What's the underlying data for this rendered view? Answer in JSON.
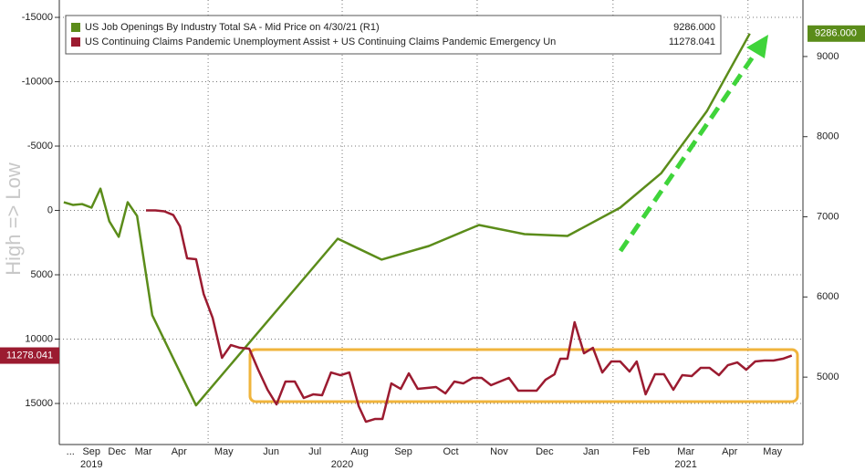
{
  "chart_data": {
    "type": "line",
    "ylabel": "High => Low",
    "xlim": [
      0.12,
      16.76
    ],
    "xticks": [
      {
        "value": 0.37,
        "label": "..."
      },
      {
        "value": 0.84,
        "label": "Sep"
      },
      {
        "value": 1.41,
        "label": "Dec"
      },
      {
        "value": 2.0,
        "label": "Mar"
      },
      {
        "value": 2.8,
        "label": "Apr"
      },
      {
        "value": 3.8,
        "label": "May"
      },
      {
        "value": 4.86,
        "label": "Jun"
      },
      {
        "value": 5.84,
        "label": "Jul"
      },
      {
        "value": 6.84,
        "label": "Aug"
      },
      {
        "value": 7.82,
        "label": "Sep"
      },
      {
        "value": 8.88,
        "label": "Oct"
      },
      {
        "value": 9.96,
        "label": "Nov"
      },
      {
        "value": 10.98,
        "label": "Dec"
      },
      {
        "value": 12.02,
        "label": "Jan"
      },
      {
        "value": 13.14,
        "label": "Feb"
      },
      {
        "value": 14.14,
        "label": "Mar"
      },
      {
        "value": 15.12,
        "label": "Apr"
      },
      {
        "value": 16.08,
        "label": "May"
      }
    ],
    "year_labels": [
      {
        "value": 0.84,
        "label": "2019"
      },
      {
        "value": 6.45,
        "label": "2020"
      },
      {
        "value": 14.14,
        "label": "2021"
      }
    ],
    "xgrid": [
      3.45,
      6.45,
      9.47,
      12.51,
      15.53
    ],
    "ylim": [
      -16350,
      18190
    ],
    "yinverted": true,
    "yticks": [
      -15000,
      -10000,
      -5000,
      0,
      5000,
      10000,
      15000
    ],
    "y2lim": [
      4159,
      9705
    ],
    "y2ticks": [
      5000,
      6000,
      7000,
      8000,
      9000
    ],
    "grid": true,
    "series": [
      {
        "name": "US Job Openings By Industry Total SA - Mid Price on 4/30/21 (R1)",
        "color": "#5b8c1a",
        "axis": "y2",
        "last_label": "9286.000",
        "x": [
          0.22,
          0.43,
          0.63,
          0.84,
          1.04,
          1.24,
          1.45,
          1.65,
          1.86,
          2.2,
          3.18,
          6.35,
          7.33,
          8.39,
          9.51,
          10.53,
          11.49,
          12.67,
          13.59,
          14.61,
          15.57
        ],
        "values": [
          7182,
          7148,
          7159,
          7114,
          7352,
          6943,
          6750,
          7182,
          7011,
          5773,
          4648,
          6727,
          6466,
          6636,
          6898,
          6784,
          6761,
          7114,
          7545,
          8318,
          9286
        ]
      },
      {
        "name": "US Continuing Claims Pandemic Unemployment Assist + US Continuing Claims Pandemic Emergency Un",
        "color": "#9b1b30",
        "axis": "y",
        "last_label": "11278.041",
        "x": [
          2.06,
          2.27,
          2.47,
          2.67,
          2.82,
          2.98,
          3.18,
          3.35,
          3.55,
          3.76,
          3.96,
          4.16,
          4.37,
          4.57,
          4.78,
          4.98,
          5.18,
          5.39,
          5.59,
          5.8,
          6.0,
          6.2,
          6.41,
          6.61,
          6.82,
          6.98,
          7.18,
          7.35,
          7.55,
          7.76,
          7.94,
          8.14,
          8.35,
          8.55,
          8.76,
          8.96,
          9.16,
          9.37,
          9.57,
          9.78,
          9.98,
          10.18,
          10.39,
          10.59,
          10.8,
          11.0,
          11.2,
          11.33,
          11.49,
          11.65,
          11.86,
          12.06,
          12.27,
          12.47,
          12.67,
          12.88,
          13.04,
          13.24,
          13.45,
          13.65,
          13.86,
          14.06,
          14.27,
          14.47,
          14.67,
          14.88,
          15.08,
          15.29,
          15.49,
          15.69,
          15.9,
          16.1,
          16.31,
          16.51
        ],
        "values": [
          0,
          0,
          71,
          355,
          1241,
          3723,
          3794,
          6489,
          8333,
          11454,
          10461,
          10674,
          10745,
          12376,
          13936,
          15071,
          13298,
          13298,
          14574,
          14291,
          14362,
          12589,
          12801,
          12589,
          15213,
          16418,
          16206,
          16206,
          13440,
          13865,
          12660,
          13865,
          13794,
          13723,
          14220,
          13298,
          13440,
          13014,
          13014,
          13582,
          13298,
          13014,
          14007,
          14007,
          14007,
          13156,
          12730,
          11525,
          11525,
          8688,
          11099,
          10674,
          12589,
          11738,
          11738,
          12518,
          11738,
          14291,
          12730,
          12730,
          13936,
          12801,
          12872,
          12234,
          12234,
          12801,
          12021,
          11809,
          12376,
          11738,
          11667,
          11667,
          11525,
          11278.041
        ]
      }
    ]
  }
}
